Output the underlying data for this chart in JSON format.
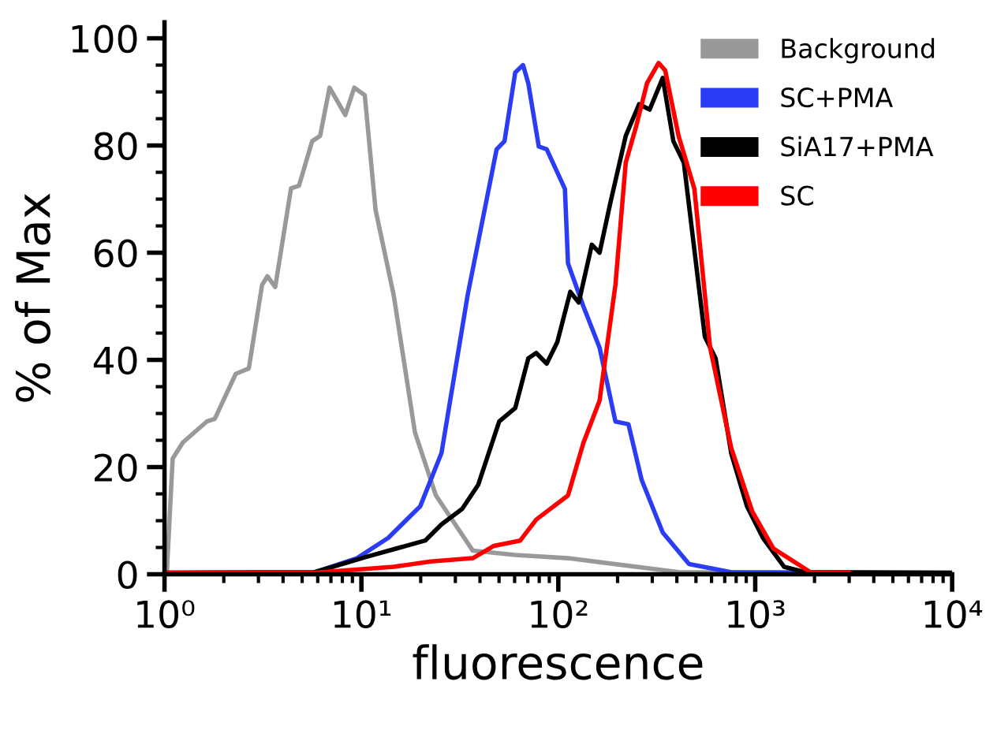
{
  "chart_data": {
    "type": "line",
    "xlabel": "fluorescence",
    "ylabel": "% of Max",
    "log": "x",
    "grid": false,
    "legend": "top right",
    "marker": "none",
    "line_style": "solid",
    "xlim": [
      1,
      10000
    ],
    "xticks": [
      {
        "value": 1,
        "label": "10⁰"
      },
      {
        "value": 10,
        "label": "10¹"
      },
      {
        "value": 100,
        "label": "10²"
      },
      {
        "value": 1000,
        "label": "10³"
      },
      {
        "value": 10000,
        "label": "10⁴"
      }
    ],
    "ylim": [
      0,
      103
    ],
    "yticks": [
      0,
      20,
      40,
      60,
      80,
      100
    ],
    "series": [
      {
        "name": "Background",
        "color": "#999999",
        "x": [
          1.03,
          1.1,
          1.24,
          1.64,
          1.8,
          2.3,
          2.68,
          3.13,
          3.33,
          3.65,
          4.39,
          4.82,
          5.62,
          6.17,
          6.89,
          7.41,
          8.28,
          9.2,
          10.4,
          11.8,
          14.6,
          18.7,
          23.9,
          36.8,
          60.4,
          112,
          408,
          1000,
          10000
        ],
        "values": [
          1,
          21.6,
          24.6,
          28.5,
          29,
          37.4,
          38.4,
          54,
          55.6,
          53.6,
          72,
          72.5,
          80.8,
          81.8,
          90.8,
          88.8,
          85.7,
          90.8,
          89.4,
          68,
          52,
          26.5,
          14.7,
          4.4,
          3.6,
          3,
          0.4,
          0.3,
          0.3
        ]
      },
      {
        "name": "SC+PMA",
        "color": "#2b3cf5",
        "x": [
          5.8,
          9.5,
          13.7,
          19.9,
          25.5,
          34.6,
          48.6,
          53.3,
          60.4,
          66.2,
          70.4,
          79.6,
          87.3,
          108,
          112,
          134,
          162,
          195,
          227,
          265,
          339,
          461,
          751,
          2000
        ],
        "values": [
          0.4,
          3,
          6.8,
          12.7,
          22.6,
          52,
          79.3,
          80.8,
          93.6,
          95,
          91.6,
          79.8,
          79.3,
          71.9,
          58,
          50,
          42.3,
          28.5,
          28,
          17.6,
          7.8,
          1.9,
          0.4,
          0.3
        ]
      },
      {
        "name": "SiA17+PMA",
        "color": "#000000",
        "x": [
          1,
          5.8,
          10.7,
          21.1,
          25.5,
          32.5,
          39.2,
          50.1,
          60.4,
          70.4,
          77.2,
          87.3,
          98.8,
          115,
          127,
          148,
          162,
          183,
          220,
          257,
          291,
          339,
          384,
          434,
          555,
          629,
          755,
          908,
          1094,
          1400,
          1790,
          10000
        ],
        "values": [
          0.3,
          0.4,
          3.3,
          6.3,
          9.3,
          12.2,
          16.7,
          28.5,
          31,
          40.3,
          41.3,
          39.3,
          43.3,
          52.7,
          50.7,
          61.5,
          60,
          69,
          81.8,
          87.7,
          86.7,
          92.6,
          80.8,
          76.8,
          44.3,
          40.3,
          22.6,
          12.7,
          6.8,
          1.4,
          0.4,
          0.3
        ]
      },
      {
        "name": "SC",
        "color": "#ff0000",
        "x": [
          1,
          5.8,
          14.6,
          22.5,
          36.8,
          47.1,
          64.1,
          77.2,
          112,
          134,
          162,
          195,
          220,
          249,
          282,
          323,
          349,
          408,
          491,
          590,
          755,
          966,
          1237,
          1905,
          3000
        ],
        "values": [
          0.3,
          0.3,
          1.4,
          2.4,
          3,
          5.3,
          6.3,
          10.2,
          14.7,
          24.5,
          32.4,
          54,
          76.8,
          83.7,
          91.6,
          95.4,
          94,
          81.8,
          71.9,
          42.3,
          23.6,
          11.7,
          4.8,
          0.4,
          0.3
        ]
      }
    ]
  }
}
